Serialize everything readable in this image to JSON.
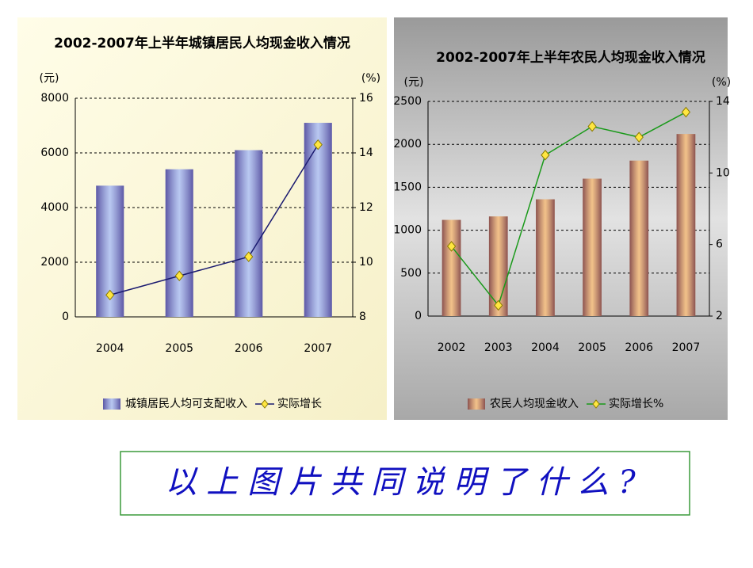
{
  "chart_data": [
    {
      "type": "bar",
      "title": "2002-2007年上半年城镇居民人均现金收入情况",
      "ylabel": "(元)",
      "y2label": "(%)",
      "categories": [
        "2004",
        "2005",
        "2006",
        "2007"
      ],
      "series": [
        {
          "name": "城镇居民人均可支配收入",
          "color": "#7f9be6",
          "values": [
            4800,
            5400,
            6100,
            7100
          ]
        },
        {
          "name": "实际增长",
          "color": "#1a1a70",
          "axis": "y2",
          "values": [
            8.8,
            9.5,
            10.2,
            14.3
          ]
        }
      ],
      "ylim": [
        0,
        8000
      ],
      "yticks": [
        0,
        2000,
        4000,
        6000,
        8000
      ],
      "y2lim": [
        8,
        16
      ],
      "y2ticks": [
        8,
        10,
        12,
        14,
        16
      ],
      "grid": true
    },
    {
      "type": "bar",
      "title": "2002-2007年上半年农民人均现金收入情况",
      "ylabel": "(元)",
      "y2label": "(%)",
      "categories": [
        "2002",
        "2003",
        "2004",
        "2005",
        "2006",
        "2007"
      ],
      "series": [
        {
          "name": "农民人均现金收入",
          "color": "#e8902a",
          "values": [
            1120,
            1160,
            1360,
            1600,
            1810,
            2120
          ]
        },
        {
          "name": "实际增长%",
          "color": "#1a9a1a",
          "axis": "y2",
          "values": [
            5.9,
            2.6,
            11.0,
            12.6,
            12.0,
            13.4
          ]
        }
      ],
      "ylim": [
        0,
        2500
      ],
      "yticks": [
        0,
        500,
        1000,
        1500,
        2000,
        2500
      ],
      "y2lim": [
        2,
        14
      ],
      "y2ticks": [
        2,
        6,
        10,
        14
      ],
      "grid": true
    }
  ],
  "caption": "以上图片共同说明了什么?"
}
